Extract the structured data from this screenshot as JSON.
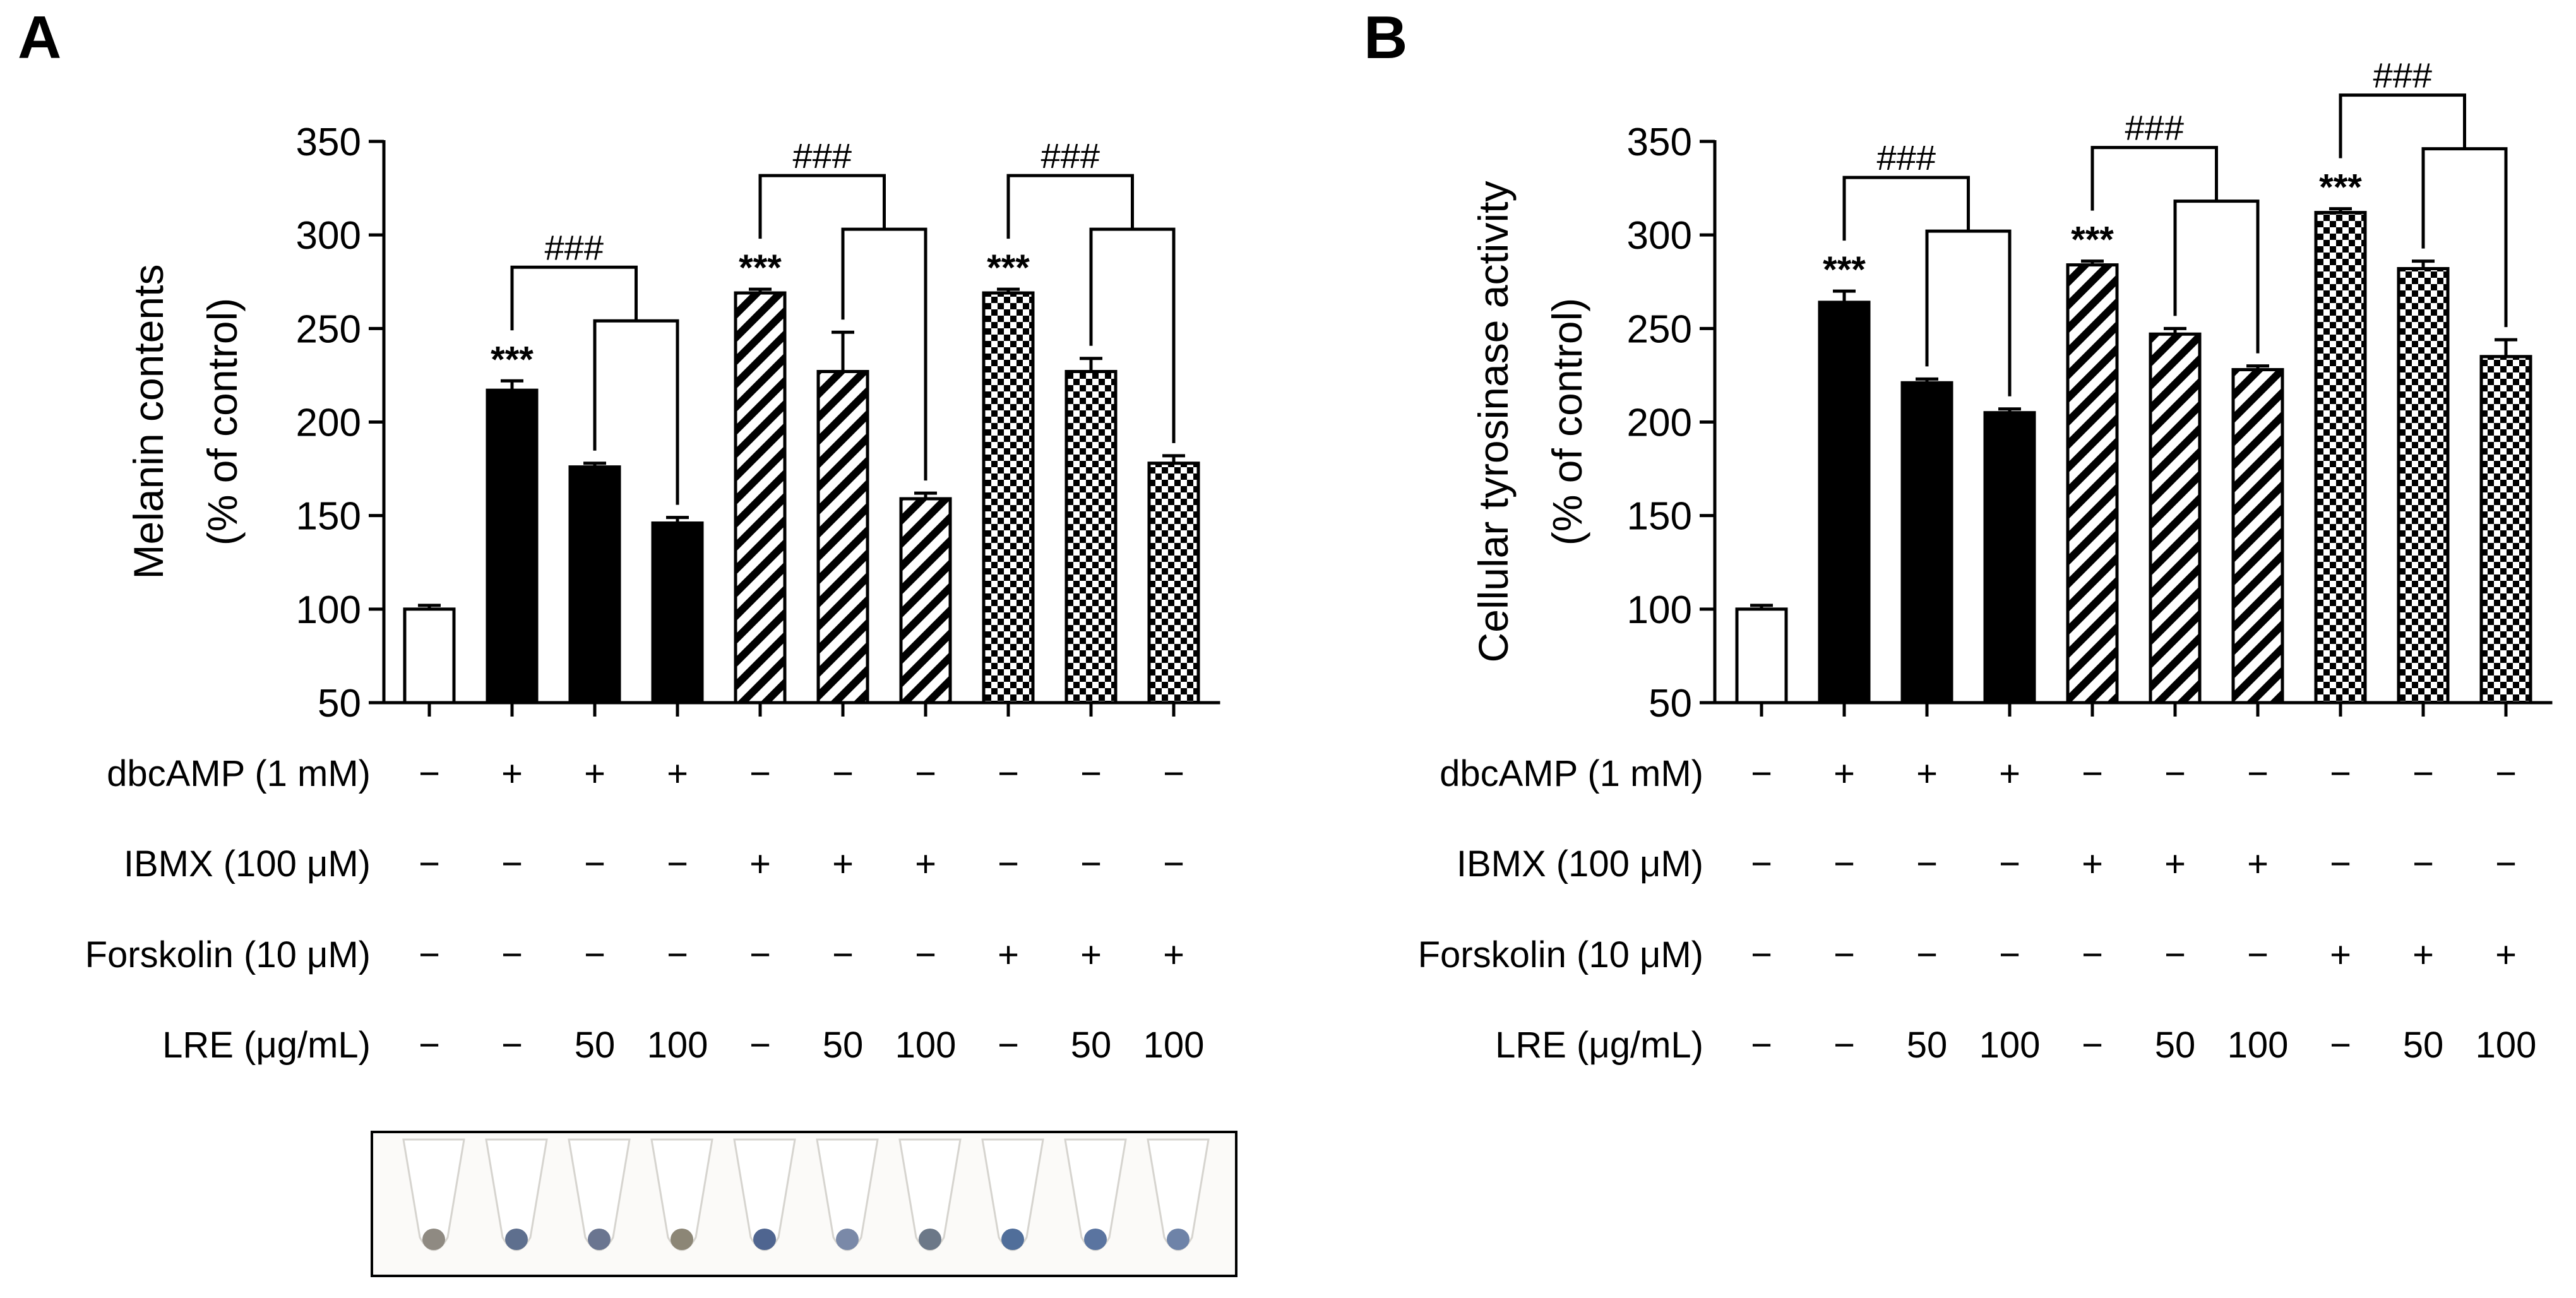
{
  "panels": {
    "A": {
      "letter": "A"
    },
    "B": {
      "letter": "B"
    }
  },
  "chart_data": [
    {
      "type": "bar",
      "panel": "A",
      "ylabel": "Melanin contents",
      "ylabel2": "(% of control)",
      "ylim": [
        50,
        350
      ],
      "yticks": [
        50,
        100,
        150,
        200,
        250,
        300,
        350
      ],
      "categories": [
        "1",
        "2",
        "3",
        "4",
        "5",
        "6",
        "7",
        "8",
        "9",
        "10"
      ],
      "values": [
        100,
        217,
        176,
        146,
        269,
        227,
        159,
        269,
        227,
        178
      ],
      "errors": [
        2,
        5,
        2,
        3,
        2,
        21,
        3,
        2,
        7,
        4
      ],
      "patterns": [
        "white",
        "black",
        "black",
        "black",
        "hatch",
        "hatch",
        "hatch",
        "checker",
        "checker",
        "checker"
      ],
      "stars": [
        "",
        "***",
        "",
        "",
        "***",
        "",
        "",
        "***",
        "",
        ""
      ],
      "brackets": [
        {
          "from": 1,
          "to": [
            2,
            3
          ],
          "label": "###"
        },
        {
          "from": 4,
          "to": [
            5,
            6
          ],
          "label": "###"
        },
        {
          "from": 7,
          "to": [
            8,
            9
          ],
          "label": "###"
        }
      ],
      "conditions": [
        {
          "label": "dbcAMP (1 mM)",
          "values": [
            "−",
            "+",
            "+",
            "+",
            "−",
            "−",
            "−",
            "−",
            "−",
            "−"
          ]
        },
        {
          "label": "IBMX (100 μM)",
          "values": [
            "−",
            "−",
            "−",
            "−",
            "+",
            "+",
            "+",
            "−",
            "−",
            "−"
          ]
        },
        {
          "label": "Forskolin (10 μM)",
          "values": [
            "−",
            "−",
            "−",
            "−",
            "−",
            "−",
            "−",
            "+",
            "+",
            "+"
          ]
        },
        {
          "label": "LRE (μg/mL)",
          "values": [
            "−",
            "−",
            "50",
            "100",
            "−",
            "50",
            "100",
            "−",
            "50",
            "100"
          ]
        }
      ]
    },
    {
      "type": "bar",
      "panel": "B",
      "ylabel": "Cellular tyrosinase activity",
      "ylabel2": "(% of control)",
      "ylim": [
        50,
        350
      ],
      "yticks": [
        50,
        100,
        150,
        200,
        250,
        300,
        350
      ],
      "categories": [
        "1",
        "2",
        "3",
        "4",
        "5",
        "6",
        "7",
        "8",
        "9",
        "10"
      ],
      "values": [
        100,
        264,
        221,
        205,
        284,
        247,
        228,
        312,
        282,
        235
      ],
      "errors": [
        2,
        6,
        2,
        2,
        2,
        3,
        2,
        2,
        4,
        9
      ],
      "patterns": [
        "white",
        "black",
        "black",
        "black",
        "hatch",
        "hatch",
        "hatch",
        "checker",
        "checker",
        "checker"
      ],
      "stars": [
        "",
        "***",
        "",
        "",
        "***",
        "",
        "",
        "***",
        "",
        ""
      ],
      "brackets": [
        {
          "from": 1,
          "to": [
            2,
            3
          ],
          "label": "###"
        },
        {
          "from": 4,
          "to": [
            5,
            6
          ],
          "label": "###"
        },
        {
          "from": 7,
          "to": [
            8,
            9
          ],
          "label": "###"
        }
      ],
      "conditions": [
        {
          "label": "dbcAMP (1 mM)",
          "values": [
            "−",
            "+",
            "+",
            "+",
            "−",
            "−",
            "−",
            "−",
            "−",
            "−"
          ]
        },
        {
          "label": "IBMX (100 μM)",
          "values": [
            "−",
            "−",
            "−",
            "−",
            "+",
            "+",
            "+",
            "−",
            "−",
            "−"
          ]
        },
        {
          "label": "Forskolin (10 μM)",
          "values": [
            "−",
            "−",
            "−",
            "−",
            "−",
            "−",
            "−",
            "+",
            "+",
            "+"
          ]
        },
        {
          "label": "LRE (μg/mL)",
          "values": [
            "−",
            "−",
            "50",
            "100",
            "−",
            "50",
            "100",
            "−",
            "50",
            "100"
          ]
        }
      ]
    }
  ],
  "tubes": {
    "pellet_colors": [
      "#8f8a82",
      "#5e6f8e",
      "#6a7590",
      "#8c8676",
      "#4f6590",
      "#7a89a8",
      "#6c7888",
      "#506e9a",
      "#5a74a0",
      "#6e83a8"
    ]
  }
}
